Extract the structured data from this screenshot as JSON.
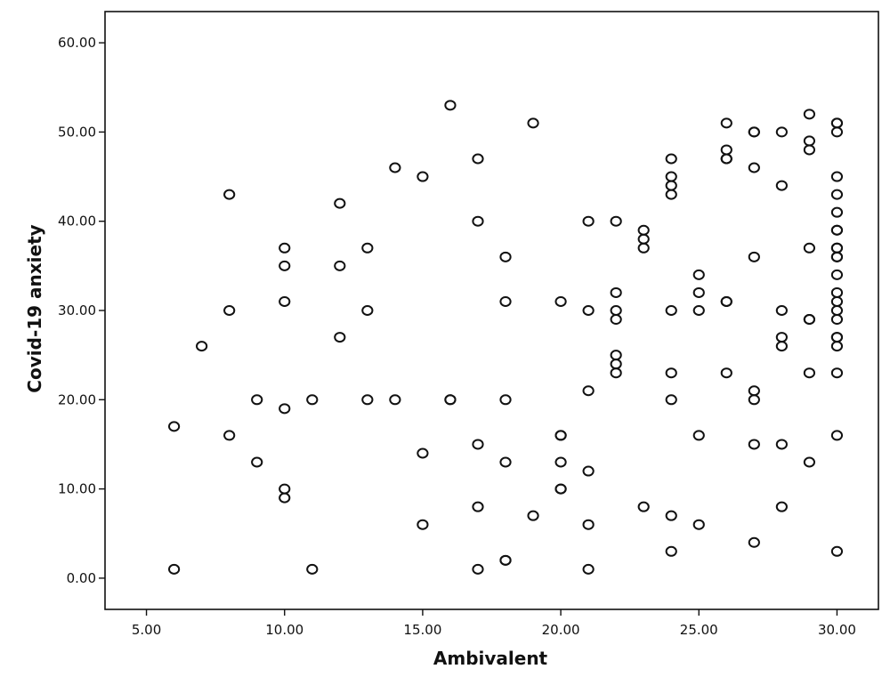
{
  "chart_data": {
    "type": "scatter",
    "xlabel": "Ambivalent",
    "ylabel": "Covid-19 anxiety",
    "xlim": [
      3.5,
      31.5
    ],
    "ylim": [
      -3.5,
      63.5
    ],
    "xticks": [
      5,
      10,
      15,
      20,
      25,
      30
    ],
    "xtick_labels": [
      "5.00",
      "10.00",
      "15.00",
      "20.00",
      "25.00",
      "30.00"
    ],
    "yticks": [
      0,
      10,
      20,
      30,
      40,
      50,
      60
    ],
    "ytick_labels": [
      "0.00",
      "10.00",
      "20.00",
      "30.00",
      "40.00",
      "50.00",
      "60.00"
    ],
    "grid": false,
    "marker": "open-circle",
    "points": [
      [
        6,
        17
      ],
      [
        6,
        1
      ],
      [
        7,
        26
      ],
      [
        8,
        43
      ],
      [
        8,
        30
      ],
      [
        8,
        16
      ],
      [
        9,
        20
      ],
      [
        9,
        13
      ],
      [
        10,
        37
      ],
      [
        10,
        35
      ],
      [
        10,
        31
      ],
      [
        10,
        19
      ],
      [
        10,
        10
      ],
      [
        10,
        9
      ],
      [
        11,
        20
      ],
      [
        11,
        1
      ],
      [
        12,
        42
      ],
      [
        12,
        35
      ],
      [
        12,
        27
      ],
      [
        13,
        37
      ],
      [
        13,
        30
      ],
      [
        13,
        20
      ],
      [
        14,
        46
      ],
      [
        14,
        20
      ],
      [
        15,
        45
      ],
      [
        15,
        14
      ],
      [
        15,
        6
      ],
      [
        16,
        53
      ],
      [
        16,
        20
      ],
      [
        16,
        20
      ],
      [
        17,
        47
      ],
      [
        17,
        40
      ],
      [
        17,
        15
      ],
      [
        17,
        8
      ],
      [
        17,
        1
      ],
      [
        18,
        36
      ],
      [
        18,
        31
      ],
      [
        18,
        20
      ],
      [
        18,
        13
      ],
      [
        18,
        2
      ],
      [
        18,
        2
      ],
      [
        19,
        51
      ],
      [
        19,
        7
      ],
      [
        20,
        31
      ],
      [
        20,
        16
      ],
      [
        20,
        16
      ],
      [
        20,
        13
      ],
      [
        20,
        10
      ],
      [
        20,
        10
      ],
      [
        21,
        40
      ],
      [
        21,
        30
      ],
      [
        21,
        21
      ],
      [
        21,
        12
      ],
      [
        21,
        6
      ],
      [
        21,
        1
      ],
      [
        22,
        40
      ],
      [
        22,
        32
      ],
      [
        22,
        30
      ],
      [
        22,
        29
      ],
      [
        22,
        25
      ],
      [
        22,
        24
      ],
      [
        22,
        23
      ],
      [
        23,
        39
      ],
      [
        23,
        38
      ],
      [
        23,
        37
      ],
      [
        23,
        8
      ],
      [
        24,
        47
      ],
      [
        24,
        45
      ],
      [
        24,
        44
      ],
      [
        24,
        43
      ],
      [
        24,
        30
      ],
      [
        24,
        23
      ],
      [
        24,
        20
      ],
      [
        24,
        7
      ],
      [
        24,
        3
      ],
      [
        25,
        34
      ],
      [
        25,
        32
      ],
      [
        25,
        30
      ],
      [
        25,
        16
      ],
      [
        25,
        6
      ],
      [
        26,
        51
      ],
      [
        26,
        48
      ],
      [
        26,
        47
      ],
      [
        26,
        47
      ],
      [
        26,
        31
      ],
      [
        26,
        31
      ],
      [
        26,
        23
      ],
      [
        27,
        50
      ],
      [
        27,
        50
      ],
      [
        27,
        46
      ],
      [
        27,
        36
      ],
      [
        27,
        21
      ],
      [
        27,
        20
      ],
      [
        27,
        15
      ],
      [
        27,
        4
      ],
      [
        28,
        50
      ],
      [
        28,
        44
      ],
      [
        28,
        30
      ],
      [
        28,
        27
      ],
      [
        28,
        26
      ],
      [
        28,
        15
      ],
      [
        28,
        8
      ],
      [
        29,
        52
      ],
      [
        29,
        49
      ],
      [
        29,
        48
      ],
      [
        29,
        37
      ],
      [
        29,
        29
      ],
      [
        29,
        29
      ],
      [
        29,
        23
      ],
      [
        29,
        13
      ],
      [
        30,
        51
      ],
      [
        30,
        51
      ],
      [
        30,
        50
      ],
      [
        30,
        45
      ],
      [
        30,
        43
      ],
      [
        30,
        41
      ],
      [
        30,
        39
      ],
      [
        30,
        39
      ],
      [
        30,
        37
      ],
      [
        30,
        37
      ],
      [
        30,
        36
      ],
      [
        30,
        36
      ],
      [
        30,
        34
      ],
      [
        30,
        32
      ],
      [
        30,
        31
      ],
      [
        30,
        30
      ],
      [
        30,
        29
      ],
      [
        30,
        27
      ],
      [
        30,
        27
      ],
      [
        30,
        26
      ],
      [
        30,
        23
      ],
      [
        30,
        16
      ],
      [
        30,
        3
      ]
    ]
  }
}
